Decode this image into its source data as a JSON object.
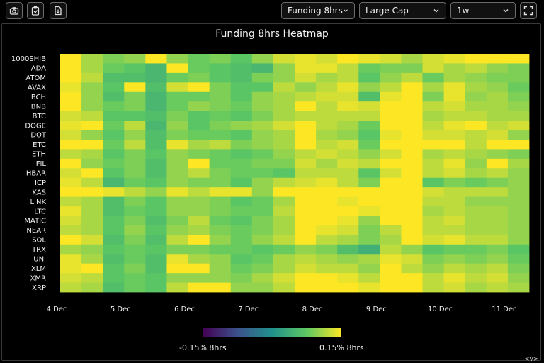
{
  "toolbar": {
    "icons": [
      "camera-icon",
      "clipboard-icon",
      "file-export-icon"
    ],
    "metric_select": "Funding 8hrs",
    "cap_select": "Large Cap",
    "period_select": "1w",
    "fullscreen_icon": "fullscreen-icon"
  },
  "corner_toggle": "<v>",
  "chart_data": {
    "type": "heatmap",
    "title": "Funding 8hrs Heatmap",
    "y_categories": [
      "1000SHIB",
      "ADA",
      "ATOM",
      "AVAX",
      "BCH",
      "BNB",
      "BTC",
      "DOGE",
      "DOT",
      "ETC",
      "ETH",
      "FIL",
      "HBAR",
      "ICP",
      "KAS",
      "LINK",
      "LTC",
      "MATIC",
      "NEAR",
      "SOL",
      "TRX",
      "UNI",
      "XLM",
      "XMR",
      "XRP"
    ],
    "x_tick_labels": [
      "4 Dec",
      "5 Dec",
      "6 Dec",
      "7 Dec",
      "8 Dec",
      "9 Dec",
      "10 Dec",
      "11 Dec"
    ],
    "x_ticks_per_day": 3,
    "columns": 22,
    "colorbar": {
      "min": -0.15,
      "max": 0.15,
      "min_label": "-0.15% 8hrs",
      "max_label": "0.15% 8hrs",
      "colormap": "viridis",
      "colors": [
        "#440154",
        "#3b528b",
        "#21918c",
        "#5ec962",
        "#fde725"
      ]
    },
    "values": [
      [
        0.15,
        0.11,
        0.09,
        0.1,
        0.15,
        0.1,
        0.08,
        0.09,
        0.07,
        0.1,
        0.13,
        0.14,
        0.13,
        0.15,
        0.14,
        0.13,
        0.11,
        0.13,
        0.14,
        0.15,
        0.15,
        0.15
      ],
      [
        0.15,
        0.11,
        0.08,
        0.07,
        0.05,
        0.15,
        0.08,
        0.07,
        0.06,
        0.05,
        0.1,
        0.14,
        0.14,
        0.12,
        0.08,
        0.09,
        0.09,
        0.13,
        0.11,
        0.12,
        0.1,
        0.09
      ],
      [
        0.15,
        0.12,
        0.06,
        0.06,
        0.05,
        0.08,
        0.09,
        0.07,
        0.06,
        0.09,
        0.1,
        0.13,
        0.11,
        0.12,
        0.07,
        0.1,
        0.12,
        0.08,
        0.11,
        0.1,
        0.09,
        0.09
      ],
      [
        0.14,
        0.1,
        0.07,
        0.15,
        0.06,
        0.13,
        0.15,
        0.09,
        0.07,
        0.07,
        0.12,
        0.1,
        0.12,
        0.14,
        0.1,
        0.12,
        0.15,
        0.11,
        0.14,
        0.11,
        0.1,
        0.08
      ],
      [
        0.15,
        0.1,
        0.06,
        0.09,
        0.05,
        0.08,
        0.08,
        0.09,
        0.07,
        0.1,
        0.11,
        0.12,
        0.13,
        0.13,
        0.06,
        0.14,
        0.15,
        0.09,
        0.14,
        0.1,
        0.11,
        0.09
      ],
      [
        0.15,
        0.1,
        0.08,
        0.09,
        0.05,
        0.08,
        0.1,
        0.09,
        0.08,
        0.1,
        0.11,
        0.15,
        0.12,
        0.14,
        0.13,
        0.15,
        0.15,
        0.12,
        0.13,
        0.11,
        0.11,
        0.1
      ],
      [
        0.13,
        0.12,
        0.07,
        0.07,
        0.06,
        0.09,
        0.07,
        0.08,
        0.07,
        0.09,
        0.11,
        0.12,
        0.12,
        0.12,
        0.12,
        0.15,
        0.15,
        0.11,
        0.12,
        0.12,
        0.11,
        0.11
      ],
      [
        0.14,
        0.15,
        0.08,
        0.12,
        0.05,
        0.1,
        0.07,
        0.09,
        0.1,
        0.11,
        0.13,
        0.15,
        0.12,
        0.11,
        0.08,
        0.15,
        0.15,
        0.12,
        0.14,
        0.15,
        0.12,
        0.13
      ],
      [
        0.13,
        0.1,
        0.07,
        0.1,
        0.06,
        0.09,
        0.08,
        0.08,
        0.07,
        0.1,
        0.11,
        0.15,
        0.11,
        0.1,
        0.07,
        0.14,
        0.15,
        0.13,
        0.13,
        0.12,
        0.13,
        0.1
      ],
      [
        0.15,
        0.15,
        0.08,
        0.12,
        0.06,
        0.14,
        0.11,
        0.12,
        0.09,
        0.1,
        0.11,
        0.15,
        0.12,
        0.13,
        0.08,
        0.15,
        0.15,
        0.15,
        0.15,
        0.12,
        0.15,
        0.15
      ],
      [
        0.12,
        0.11,
        0.07,
        0.09,
        0.07,
        0.1,
        0.09,
        0.08,
        0.07,
        0.08,
        0.1,
        0.12,
        0.13,
        0.12,
        0.1,
        0.13,
        0.15,
        0.11,
        0.12,
        0.11,
        0.1,
        0.09
      ],
      [
        0.15,
        0.1,
        0.08,
        0.09,
        0.06,
        0.1,
        0.15,
        0.08,
        0.08,
        0.09,
        0.09,
        0.13,
        0.11,
        0.13,
        0.12,
        0.15,
        0.15,
        0.12,
        0.14,
        0.1,
        0.15,
        0.11
      ],
      [
        0.13,
        0.15,
        0.07,
        0.09,
        0.06,
        0.1,
        0.12,
        0.09,
        0.08,
        0.08,
        0.07,
        0.12,
        0.12,
        0.12,
        0.07,
        0.13,
        0.15,
        0.12,
        0.13,
        0.11,
        0.12,
        0.1
      ],
      [
        0.14,
        0.12,
        0.05,
        0.08,
        0.07,
        0.1,
        0.09,
        0.09,
        0.07,
        0.1,
        0.12,
        0.13,
        0.14,
        0.12,
        0.09,
        0.15,
        0.15,
        0.07,
        0.09,
        0.08,
        0.09,
        0.1
      ],
      [
        0.15,
        0.15,
        0.14,
        0.12,
        0.1,
        0.14,
        0.12,
        0.14,
        0.14,
        0.1,
        0.15,
        0.15,
        0.15,
        0.15,
        0.15,
        0.15,
        0.15,
        0.13,
        0.12,
        0.12,
        0.12,
        0.1
      ],
      [
        0.12,
        0.11,
        0.06,
        0.09,
        0.07,
        0.1,
        0.1,
        0.09,
        0.07,
        0.08,
        0.11,
        0.15,
        0.15,
        0.14,
        0.15,
        0.15,
        0.15,
        0.12,
        0.12,
        0.1,
        0.1,
        0.1
      ],
      [
        0.14,
        0.11,
        0.06,
        0.08,
        0.07,
        0.1,
        0.1,
        0.09,
        0.08,
        0.08,
        0.12,
        0.15,
        0.15,
        0.15,
        0.14,
        0.15,
        0.15,
        0.11,
        0.12,
        0.11,
        0.11,
        0.1
      ],
      [
        0.13,
        0.11,
        0.07,
        0.09,
        0.06,
        0.09,
        0.12,
        0.08,
        0.07,
        0.09,
        0.11,
        0.15,
        0.15,
        0.14,
        0.1,
        0.15,
        0.15,
        0.12,
        0.13,
        0.11,
        0.11,
        0.1
      ],
      [
        0.12,
        0.11,
        0.07,
        0.1,
        0.07,
        0.1,
        0.11,
        0.09,
        0.08,
        0.09,
        0.11,
        0.15,
        0.14,
        0.13,
        0.09,
        0.12,
        0.15,
        0.12,
        0.12,
        0.11,
        0.11,
        0.1
      ],
      [
        0.15,
        0.13,
        0.06,
        0.09,
        0.06,
        0.12,
        0.15,
        0.1,
        0.08,
        0.1,
        0.12,
        0.15,
        0.12,
        0.11,
        0.09,
        0.11,
        0.15,
        0.13,
        0.14,
        0.12,
        0.12,
        0.1
      ],
      [
        0.11,
        0.1,
        0.07,
        0.08,
        0.07,
        0.09,
        0.09,
        0.08,
        0.08,
        0.07,
        0.08,
        0.1,
        0.09,
        0.06,
        0.04,
        0.12,
        0.1,
        0.07,
        0.08,
        0.08,
        0.09,
        0.07
      ],
      [
        0.14,
        0.11,
        0.06,
        0.08,
        0.06,
        0.14,
        0.11,
        0.1,
        0.07,
        0.08,
        0.11,
        0.12,
        0.11,
        0.1,
        0.11,
        0.14,
        0.13,
        0.09,
        0.1,
        0.09,
        0.1,
        0.08
      ],
      [
        0.14,
        0.15,
        0.07,
        0.09,
        0.06,
        0.15,
        0.15,
        0.1,
        0.08,
        0.09,
        0.11,
        0.13,
        0.12,
        0.12,
        0.1,
        0.15,
        0.12,
        0.1,
        0.12,
        0.11,
        0.12,
        0.09
      ],
      [
        0.13,
        0.12,
        0.07,
        0.08,
        0.07,
        0.1,
        0.1,
        0.1,
        0.09,
        0.11,
        0.13,
        0.15,
        0.15,
        0.14,
        0.12,
        0.15,
        0.15,
        0.12,
        0.14,
        0.12,
        0.13,
        0.1
      ],
      [
        0.12,
        0.11,
        0.06,
        0.08,
        0.07,
        0.12,
        0.15,
        0.15,
        0.1,
        0.1,
        0.12,
        0.15,
        0.15,
        0.15,
        0.14,
        0.15,
        0.15,
        0.12,
        0.13,
        0.11,
        0.12,
        0.11
      ]
    ]
  }
}
